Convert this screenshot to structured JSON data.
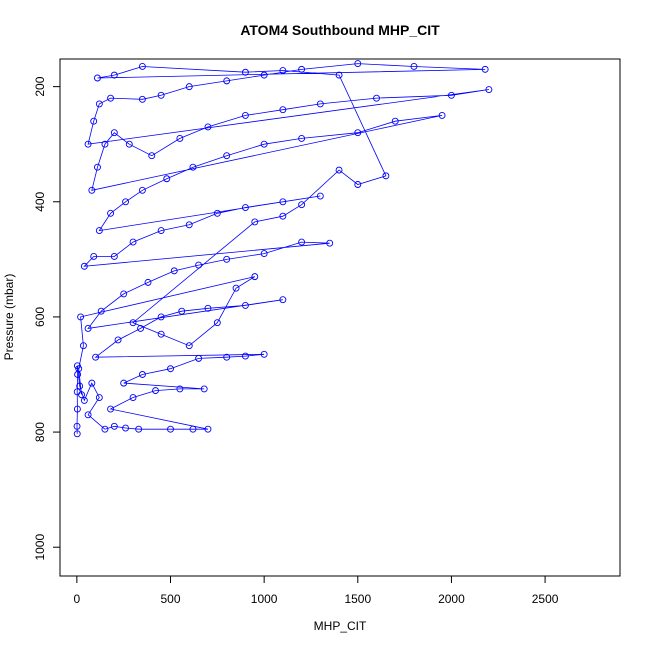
{
  "chart_data": {
    "type": "scatter",
    "title": "ATOM4 Southbound MHP_CIT",
    "xlabel": "MHP_CIT",
    "ylabel": "Pressure (mbar)",
    "xlim": [
      -90,
      2900
    ],
    "ylim": [
      1050,
      152
    ],
    "y_reversed": true,
    "x_ticks": [
      0,
      500,
      1000,
      1500,
      2000,
      2500
    ],
    "y_ticks": [
      200,
      400,
      600,
      800,
      1000
    ],
    "grid": false,
    "legend": "none",
    "color": "#0000ff",
    "marker": "open-circle",
    "connected_lines": true,
    "series": [
      {
        "values": [
          [
            2,
            803
          ],
          [
            1,
            790
          ],
          [
            3,
            760
          ],
          [
            2,
            730
          ],
          [
            4,
            700
          ],
          [
            3,
            685
          ],
          [
            15,
            720
          ],
          [
            40,
            745
          ],
          [
            80,
            715
          ],
          [
            120,
            740
          ],
          [
            60,
            770
          ],
          [
            150,
            795
          ],
          [
            200,
            790
          ],
          [
            260,
            793
          ],
          [
            330,
            795
          ],
          [
            500,
            795
          ],
          [
            620,
            795
          ],
          [
            700,
            795
          ],
          [
            180,
            760
          ],
          [
            300,
            740
          ],
          [
            420,
            728
          ],
          [
            550,
            725
          ],
          [
            680,
            725
          ],
          [
            250,
            715
          ],
          [
            350,
            700
          ],
          [
            500,
            690
          ],
          [
            650,
            672
          ],
          [
            800,
            670
          ],
          [
            900,
            668
          ],
          [
            1000,
            665
          ],
          [
            100,
            670
          ],
          [
            220,
            640
          ],
          [
            340,
            620
          ],
          [
            450,
            600
          ],
          [
            560,
            590
          ],
          [
            700,
            585
          ],
          [
            900,
            580
          ],
          [
            1100,
            570
          ],
          [
            60,
            620
          ],
          [
            130,
            590
          ],
          [
            250,
            560
          ],
          [
            380,
            540
          ],
          [
            520,
            520
          ],
          [
            650,
            510
          ],
          [
            800,
            500
          ],
          [
            1000,
            490
          ],
          [
            1200,
            470
          ],
          [
            1350,
            472
          ],
          [
            40,
            512
          ],
          [
            90,
            495
          ],
          [
            200,
            495
          ],
          [
            300,
            470
          ],
          [
            450,
            450
          ],
          [
            600,
            440
          ],
          [
            750,
            420
          ],
          [
            900,
            410
          ],
          [
            1100,
            400
          ],
          [
            1300,
            390
          ],
          [
            120,
            450
          ],
          [
            180,
            420
          ],
          [
            260,
            400
          ],
          [
            350,
            380
          ],
          [
            480,
            360
          ],
          [
            620,
            340
          ],
          [
            800,
            320
          ],
          [
            1000,
            300
          ],
          [
            1200,
            290
          ],
          [
            1500,
            280
          ],
          [
            1700,
            260
          ],
          [
            1950,
            250
          ],
          [
            80,
            380
          ],
          [
            110,
            340
          ],
          [
            150,
            300
          ],
          [
            200,
            280
          ],
          [
            280,
            300
          ],
          [
            400,
            320
          ],
          [
            550,
            290
          ],
          [
            700,
            270
          ],
          [
            900,
            250
          ],
          [
            1100,
            240
          ],
          [
            1300,
            230
          ],
          [
            1600,
            220
          ],
          [
            2000,
            215
          ],
          [
            2200,
            205
          ],
          [
            60,
            300
          ],
          [
            90,
            260
          ],
          [
            120,
            230
          ],
          [
            180,
            220
          ],
          [
            350,
            222
          ],
          [
            450,
            215
          ],
          [
            600,
            200
          ],
          [
            800,
            190
          ],
          [
            1000,
            180
          ],
          [
            1200,
            170
          ],
          [
            1500,
            160
          ],
          [
            1800,
            165
          ],
          [
            2180,
            170
          ],
          [
            110,
            185
          ],
          [
            200,
            180
          ],
          [
            350,
            165
          ],
          [
            900,
            175
          ],
          [
            1100,
            172
          ],
          [
            1400,
            180
          ],
          [
            1650,
            355
          ],
          [
            1500,
            370
          ],
          [
            1400,
            345
          ],
          [
            1200,
            405
          ],
          [
            1100,
            425
          ],
          [
            950,
            435
          ],
          [
            300,
            610
          ],
          [
            450,
            630
          ],
          [
            600,
            650
          ],
          [
            750,
            610
          ],
          [
            850,
            550
          ],
          [
            950,
            530
          ],
          [
            20,
            600
          ],
          [
            35,
            650
          ],
          [
            10,
            690
          ],
          [
            25,
            735
          ]
        ]
      }
    ]
  }
}
